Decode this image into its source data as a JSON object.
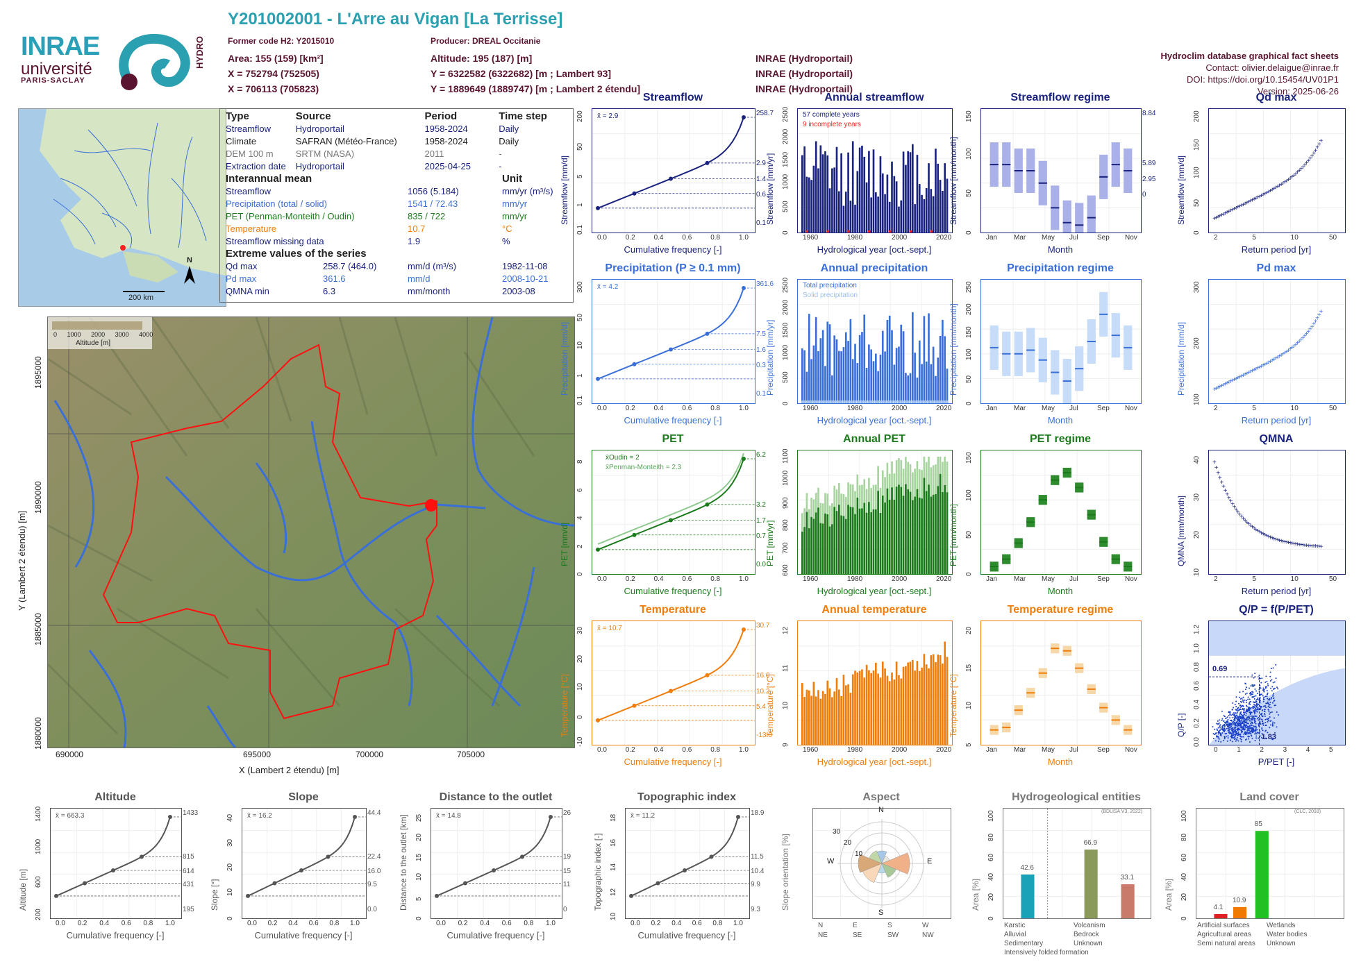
{
  "header": {
    "title": "Y201002001 - L'Arre au Vigan [La Terrisse]",
    "former_code": "Former code H2: Y2015010",
    "producer": "Producer: DREAL Occitanie",
    "area": "Area: 155 (159) [km²]",
    "altitude": "Altitude: 195 (187) [m]",
    "x93": "X = 752794 (752505)",
    "y93": "Y = 6322582 (6322682) [m ; Lambert 93]",
    "x2": "X = 706113 (705823)",
    "y2": "Y = 1889649 (1889747) [m ; Lambert 2 étendu]",
    "src1": "INRAE (Hydroportail)",
    "src2": "INRAE (Hydroportail)",
    "src3": "INRAE (Hydroportail)"
  },
  "logos": {
    "inrae": "INRAE",
    "universite": "université",
    "paris_saclay": "PARIS-SACLAY",
    "hydro": "HYDRO"
  },
  "info": {
    "db": "Hydroclim database graphical fact sheets",
    "contact": "Contact: olivier.delaigue@inrae.fr",
    "doi": "DOI: https://doi.org/10.15454/UV01P1",
    "version": "Version: 2025-06-26"
  },
  "minimap": {
    "scale": "200 km",
    "north": "N"
  },
  "table": {
    "headers": [
      "Type",
      "Source",
      "Period",
      "Time step"
    ],
    "rows": [
      [
        "Streamflow",
        "Hydroportail",
        "1958-2024",
        "Daily"
      ],
      [
        "Climate",
        "SAFRAN (Météo-France)",
        "1958-2024",
        "Daily"
      ],
      [
        "DEM 100 m",
        "SRTM (NASA)",
        "2011",
        "-"
      ],
      [
        "Extraction date",
        "Hydroportail",
        "2025-04-25",
        "-"
      ]
    ],
    "interannual_title": "Interannual mean",
    "unit_title": "Unit",
    "inter": [
      [
        "Streamflow",
        "1056 (5.184)",
        "mm/yr (m³/s)"
      ],
      [
        "Precipitation (total / solid)",
        "1541 / 72.43",
        "mm/yr"
      ],
      [
        "PET (Penman-Monteith / Oudin)",
        "835 / 722",
        "mm/yr"
      ],
      [
        "Temperature",
        "10.7",
        "°C"
      ],
      [
        "Streamflow missing data",
        "1.9",
        "%"
      ]
    ],
    "extreme_title": "Extreme values of the series",
    "extreme": [
      [
        "Qd max",
        "258.7 (464.0)",
        "mm/d (m³/s)",
        "1982-11-08"
      ],
      [
        "Pd max",
        "361.6",
        "mm/d",
        "2008-10-21"
      ],
      [
        "QMNA min",
        "6.3",
        "mm/month",
        "2003-08"
      ]
    ]
  },
  "bigmap": {
    "legend_ticks": [
      "0",
      "1000",
      "2000",
      "3000",
      "4000"
    ],
    "legend_title": "Altitude [m]",
    "xticks": [
      "690000",
      "695000",
      "700000",
      "705000"
    ],
    "yticks": [
      "1895000",
      "1890000",
      "1885000",
      "1880000"
    ],
    "xlabel": "X (Lambert 2 étendu) [m]",
    "ylabel": "Y (Lambert 2 étendu) [m]"
  },
  "panels": {
    "streamflow": {
      "title": "Streamflow",
      "ylabel": "Streamflow [mm/d]",
      "xlabel": "Cumulative frequency [-]",
      "mean": "x̄ = 2.9",
      "right": [
        "258.7",
        "2.9",
        "1.4",
        "0.6",
        "0.1"
      ],
      "yticks": [
        "200",
        "50",
        "5",
        "1",
        "0.1"
      ],
      "xticks": [
        "0.0",
        "0.2",
        "0.4",
        "0.6",
        "0.8",
        "1.0"
      ]
    },
    "annual_streamflow": {
      "title": "Annual streamflow",
      "ylabel": "Streamflow [mm/yr]",
      "xlabel": "Hydrological year [oct.-sept.]",
      "legend1": "57 complete years",
      "legend2": "9 incomplete years",
      "yticks": [
        "2500",
        "2000",
        "1500",
        "1000",
        "500",
        "0"
      ],
      "xticks": [
        "1960",
        "1980",
        "2000",
        "2020"
      ]
    },
    "streamflow_regime": {
      "title": "Streamflow regime",
      "ylabel": "Streamflow [mm/month]",
      "xlabel": "Month",
      "yticks": [
        "150",
        "100",
        "50",
        "0"
      ],
      "right": [
        "8.84",
        "5.89",
        "2.95",
        "0"
      ],
      "xticks": [
        "Jan",
        "Mar",
        "May",
        "Jul",
        "Sep",
        "Nov"
      ]
    },
    "qd_max": {
      "title": "Qd max",
      "ylabel": "Streamflow [mm/d]",
      "xlabel": "Return period [yr]",
      "yticks": [
        "200",
        "150",
        "100",
        "50",
        "0"
      ],
      "xticks": [
        "2",
        "5",
        "10",
        "50"
      ]
    },
    "precipitation": {
      "title": "Precipitation (P ≥ 0.1 mm)",
      "ylabel": "Precipitation [mm/d]",
      "xlabel": "Cumulative frequency [-]",
      "mean": "x̄ = 4.2",
      "right": [
        "361.6",
        "7.5",
        "1.6",
        "0.3",
        "0.1"
      ],
      "yticks": [
        "300",
        "50",
        "10",
        "1",
        "0.1"
      ],
      "xticks": [
        "0.0",
        "0.2",
        "0.4",
        "0.6",
        "0.8",
        "1.0"
      ]
    },
    "annual_precipitation": {
      "title": "Annual precipitation",
      "ylabel": "Precipitation [mm/yr]",
      "xlabel": "Hydrological year [oct.-sept.]",
      "legend1": "Total precipitation",
      "legend2": "Solid precipitation",
      "yticks": [
        "2500",
        "2000",
        "1500",
        "1000",
        "500",
        "0"
      ],
      "xticks": [
        "1960",
        "1980",
        "2000",
        "2020"
      ]
    },
    "precipitation_regime": {
      "title": "Precipitation regime",
      "ylabel": "Precipitation [mm/month]",
      "xlabel": "Month",
      "yticks": [
        "250",
        "200",
        "150",
        "100",
        "50",
        "0"
      ],
      "xticks": [
        "Jan",
        "Mar",
        "May",
        "Jul",
        "Sep",
        "Nov"
      ]
    },
    "pd_max": {
      "title": "Pd max",
      "ylabel": "Precipitation [mm/d]",
      "xlabel": "Return period [yr]",
      "yticks": [
        "300",
        "200",
        "100"
      ],
      "xticks": [
        "2",
        "5",
        "10",
        "50"
      ]
    },
    "pet": {
      "title": "PET",
      "ylabel": "PET [mm/d]",
      "xlabel": "Cumulative frequency [-]",
      "legend1": "x̄Oudin = 2",
      "legend2": "x̄Penman-Monteith = 2.3",
      "right": [
        "6.2",
        "3.2",
        "1.7",
        "0.7",
        "0.0"
      ],
      "yticks": [
        "8",
        "6",
        "4",
        "2",
        "0"
      ],
      "xticks": [
        "0.0",
        "0.2",
        "0.4",
        "0.6",
        "0.8",
        "1.0"
      ]
    },
    "annual_pet": {
      "title": "Annual PET",
      "ylabel": "PET [mm/yr]",
      "xlabel": "Hydrological year [oct.-sept.]",
      "yticks": [
        "1100",
        "1000",
        "900",
        "800",
        "700",
        "600"
      ],
      "xticks": [
        "1960",
        "1980",
        "2000",
        "2020"
      ]
    },
    "pet_regime": {
      "title": "PET regime",
      "ylabel": "PET [mm/month]",
      "xlabel": "Month",
      "yticks": [
        "150",
        "100",
        "50",
        "0"
      ],
      "xticks": [
        "Jan",
        "Mar",
        "May",
        "Jul",
        "Sep",
        "Nov"
      ]
    },
    "qmna": {
      "title": "QMNA",
      "ylabel": "QMNA [mm/month]",
      "xlabel": "Return period [yr]",
      "yticks": [
        "40",
        "30",
        "20",
        "10"
      ],
      "xticks": [
        "2",
        "5",
        "10",
        "50"
      ]
    },
    "temperature": {
      "title": "Temperature",
      "ylabel": "Temperature [°C]",
      "xlabel": "Cumulative frequency [-]",
      "mean": "x̄ = 10.7",
      "right": [
        "30.7",
        "16.0",
        "10.2",
        "5.4",
        "-13.0"
      ],
      "yticks": [
        "30",
        "20",
        "10",
        "0",
        "-10"
      ],
      "xticks": [
        "0.0",
        "0.2",
        "0.4",
        "0.6",
        "0.8",
        "1.0"
      ]
    },
    "annual_temperature": {
      "title": "Annual temperature",
      "ylabel": "Temperature [°C]",
      "xlabel": "Hydrological year [oct.-sept.]",
      "yticks": [
        "12",
        "11",
        "10",
        "9"
      ],
      "xticks": [
        "1960",
        "1980",
        "2000",
        "2020"
      ]
    },
    "temperature_regime": {
      "title": "Temperature regime",
      "ylabel": "Temperature [°C]",
      "xlabel": "Month",
      "yticks": [
        "20",
        "15",
        "10",
        "5"
      ],
      "xticks": [
        "Jan",
        "Mar",
        "May",
        "Jul",
        "Sep",
        "Nov"
      ]
    },
    "qp": {
      "title": "Q/P = f(P/PET)",
      "ylabel": "Q/P [-]",
      "xlabel": "P/PET [-]",
      "v1": "0.69",
      "v2": "1.83",
      "yticks": [
        "1.2",
        "1.0",
        "0.8",
        "0.6",
        "0.4",
        "0.2",
        "0.0"
      ],
      "xticks": [
        "0",
        "1",
        "2",
        "3",
        "4",
        "5"
      ]
    },
    "altitude": {
      "title": "Altitude",
      "ylabel": "Altitude [m]",
      "xlabel": "Cumulative frequency [-]",
      "mean": "x̄ = 663.3",
      "right": [
        "1433",
        "815",
        "614",
        "431",
        "195"
      ],
      "yticks": [
        "1400",
        "1000",
        "600",
        "200"
      ],
      "xticks": [
        "0.0",
        "0.2",
        "0.4",
        "0.6",
        "0.8",
        "1.0"
      ]
    },
    "slope": {
      "title": "Slope",
      "ylabel": "Slope [°]",
      "xlabel": "Cumulative frequency [-]",
      "mean": "x̄ = 16.2",
      "right": [
        "44.4",
        "22.4",
        "16.0",
        "9.5",
        "0.0"
      ],
      "yticks": [
        "40",
        "30",
        "20",
        "10",
        "0"
      ],
      "xticks": [
        "0.0",
        "0.2",
        "0.4",
        "0.6",
        "0.8",
        "1.0"
      ]
    },
    "distance": {
      "title": "Distance to the outlet",
      "ylabel": "Distance to the outlet [km]",
      "xlabel": "Cumulative frequency [-]",
      "mean": "x̄ = 14.8",
      "right": [
        "26",
        "19",
        "15",
        "11",
        "0"
      ],
      "yticks": [
        "25",
        "20",
        "15",
        "10",
        "5",
        "0"
      ],
      "xticks": [
        "0.0",
        "0.2",
        "0.4",
        "0.6",
        "0.8",
        "1.0"
      ]
    },
    "topographic": {
      "title": "Topographic index",
      "ylabel": "Topographic index [-]",
      "xlabel": "Cumulative frequency [-]",
      "mean": "x̄ = 11.2",
      "right": [
        "18.9",
        "11.5",
        "10.4",
        "9.9",
        "9.3"
      ],
      "yticks": [
        "18",
        "16",
        "14",
        "12",
        "10"
      ],
      "xticks": [
        "0.0",
        "0.2",
        "0.4",
        "0.6",
        "0.8",
        "1.0"
      ]
    },
    "aspect": {
      "title": "Aspect",
      "ylabel": "Slope orientation [%]",
      "dirs": [
        "N",
        "E",
        "S",
        "W"
      ],
      "rings": [
        "30",
        "20",
        "10"
      ],
      "legend": [
        "N",
        "E",
        "S",
        "W",
        "NE",
        "SE",
        "SW",
        "NW"
      ]
    },
    "hydrogeo": {
      "title": "Hydrogeological entities",
      "ylabel": "Area [%]",
      "note": "(BDLISA V3, 2022)",
      "values": [
        "42.6",
        "66.9",
        "33.1"
      ],
      "yticks": [
        "100",
        "80",
        "60",
        "40",
        "20",
        "0"
      ],
      "legend": [
        "Karstic",
        "Volcanism",
        "Alluvial",
        "Bedrock",
        "Sedimentary",
        "Unknown",
        "Intensively folded formation"
      ]
    },
    "landcover": {
      "title": "Land cover",
      "ylabel": "Area [%]",
      "note": "(CLC, 2018)",
      "values": [
        "4.1",
        "10.9",
        "85"
      ],
      "yticks": [
        "100",
        "80",
        "60",
        "40",
        "20",
        "0"
      ],
      "legend": [
        "Artificial surfaces",
        "Wetlands",
        "Agricultural areas",
        "Water bodies",
        "Semi natural areas",
        "Unknown"
      ]
    }
  },
  "colors": {
    "streamflow": "#1a237e",
    "precipitation": "#3a6fd8",
    "pet": "#1b7a1b",
    "temperature": "#ef7d0a",
    "title_teal": "#2aa0b0",
    "maroon": "#5a1430"
  }
}
